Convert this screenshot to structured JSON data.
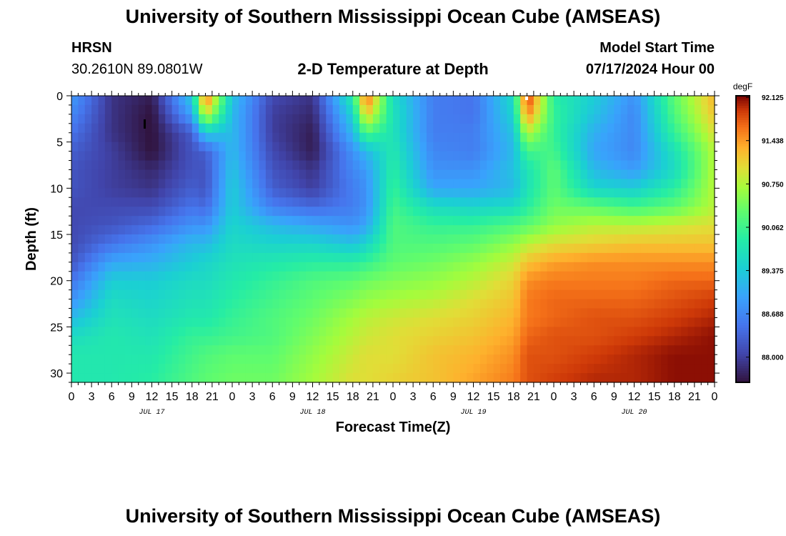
{
  "header": {
    "title": "University of Southern Mississippi Ocean Cube (AMSEAS)",
    "station": "HRSN",
    "coordinates": "30.2610N  89.0801W",
    "subtitle": "2-D Temperature at Depth",
    "model_start_label": "Model Start Time",
    "model_start_value": "07/17/2024 Hour 00"
  },
  "footer": {
    "title": "University of Southern Mississippi Ocean Cube (AMSEAS)"
  },
  "chart_data": {
    "type": "heatmap",
    "xlabel": "Forecast Time(Z)",
    "ylabel": "Depth (ft)",
    "x_unit": "hours from model start (07/17/2024 00Z)",
    "xlim": [
      0,
      96
    ],
    "ylim": [
      31,
      0
    ],
    "x_tick_labels": [
      "0",
      "3",
      "6",
      "9",
      "12",
      "15",
      "18",
      "21",
      "0",
      "3",
      "6",
      "9",
      "12",
      "15",
      "18",
      "21",
      "0",
      "3",
      "6",
      "9",
      "12",
      "15",
      "18",
      "21",
      "0",
      "3",
      "6",
      "9",
      "12",
      "15",
      "18",
      "21",
      "0"
    ],
    "y_ticks": [
      0,
      5,
      10,
      15,
      20,
      25,
      30
    ],
    "date_labels": [
      {
        "label": "JUL 17",
        "hour": 12
      },
      {
        "label": "JUL 18",
        "hour": 36
      },
      {
        "label": "JUL 19",
        "hour": 60
      },
      {
        "label": "JUL 20",
        "hour": 84
      }
    ],
    "colorbar": {
      "unit": "degF",
      "min": 87.6,
      "max": 92.15,
      "tick_labels": [
        "92.125",
        "91.438",
        "90.750",
        "90.062",
        "89.375",
        "88.688",
        "88.000"
      ],
      "tick_values": [
        92.125,
        91.438,
        90.75,
        90.062,
        89.375,
        88.688,
        88.0
      ]
    },
    "depths": [
      0,
      2,
      4,
      6,
      8,
      10,
      12,
      14,
      16,
      18,
      20,
      22,
      24,
      26,
      28,
      31
    ],
    "hours": [
      0,
      6,
      12,
      18,
      20,
      24,
      30,
      36,
      42,
      44,
      48,
      54,
      60,
      66,
      68,
      72,
      78,
      84,
      90,
      96
    ],
    "values": [
      [
        88.9,
        87.9,
        87.7,
        89.4,
        91.8,
        89.3,
        88.1,
        87.9,
        89.9,
        91.8,
        89.6,
        88.6,
        88.5,
        89.6,
        92.0,
        89.9,
        89.4,
        88.8,
        90.3,
        91.3
      ],
      [
        88.7,
        87.9,
        87.6,
        89.0,
        91.0,
        89.2,
        88.0,
        87.8,
        89.5,
        91.2,
        89.7,
        88.6,
        88.5,
        89.5,
        91.6,
        90.0,
        89.3,
        88.7,
        90.2,
        91.2
      ],
      [
        88.5,
        87.9,
        87.6,
        88.3,
        89.4,
        89.2,
        88.0,
        87.7,
        89.2,
        90.2,
        89.7,
        88.6,
        88.6,
        89.3,
        90.8,
        90.0,
        89.1,
        88.7,
        90.0,
        91.0
      ],
      [
        88.3,
        88.0,
        87.6,
        88.2,
        88.3,
        89.2,
        88.1,
        87.7,
        88.8,
        89.2,
        89.8,
        88.7,
        88.6,
        89.2,
        90.1,
        90.1,
        89.0,
        88.7,
        89.7,
        90.8
      ],
      [
        88.2,
        88.0,
        87.8,
        88.2,
        88.2,
        89.3,
        88.2,
        87.9,
        88.7,
        88.9,
        89.9,
        88.8,
        88.8,
        89.3,
        89.7,
        90.3,
        89.2,
        88.9,
        89.6,
        90.8
      ],
      [
        88.2,
        88.0,
        87.9,
        88.3,
        88.2,
        89.4,
        88.3,
        88.0,
        88.6,
        88.8,
        90.0,
        89.0,
        89.0,
        89.2,
        89.7,
        90.3,
        89.5,
        89.4,
        89.9,
        90.8
      ],
      [
        88.1,
        88.1,
        88.1,
        88.5,
        88.4,
        89.4,
        88.6,
        88.4,
        88.6,
        88.8,
        90.1,
        89.6,
        89.5,
        89.6,
        89.9,
        90.4,
        90.3,
        90.1,
        90.3,
        90.8
      ],
      [
        88.1,
        88.2,
        88.4,
        88.8,
        88.8,
        89.5,
        89.2,
        89.0,
        88.8,
        89.0,
        90.2,
        90.0,
        90.0,
        90.2,
        90.3,
        90.6,
        90.8,
        90.8,
        90.9,
        91.0
      ],
      [
        88.1,
        88.5,
        88.8,
        89.2,
        89.2,
        89.6,
        89.5,
        89.5,
        89.3,
        89.5,
        90.2,
        90.2,
        90.3,
        90.6,
        90.8,
        91.0,
        91.1,
        91.2,
        91.2,
        91.2
      ],
      [
        88.2,
        89.0,
        89.1,
        89.4,
        89.5,
        89.7,
        89.8,
        89.9,
        89.9,
        90.0,
        90.3,
        90.4,
        90.6,
        90.9,
        91.2,
        91.4,
        91.5,
        91.5,
        91.5,
        91.5
      ],
      [
        88.5,
        89.4,
        89.4,
        89.6,
        89.6,
        89.8,
        90.0,
        90.2,
        90.3,
        90.4,
        90.5,
        90.6,
        90.8,
        91.1,
        91.5,
        91.6,
        91.6,
        91.6,
        91.7,
        91.7
      ],
      [
        88.8,
        89.6,
        89.5,
        89.7,
        89.7,
        89.9,
        90.1,
        90.3,
        90.5,
        90.6,
        90.7,
        90.8,
        91.0,
        91.2,
        91.6,
        91.7,
        91.7,
        91.7,
        91.8,
        91.9
      ],
      [
        89.2,
        89.7,
        89.6,
        89.8,
        89.8,
        90.0,
        90.2,
        90.4,
        90.7,
        90.8,
        90.9,
        91.0,
        91.1,
        91.3,
        91.6,
        91.7,
        91.8,
        91.8,
        91.9,
        92.0
      ],
      [
        89.6,
        89.8,
        89.7,
        90.0,
        90.0,
        90.1,
        90.2,
        90.5,
        90.8,
        90.9,
        91.0,
        91.1,
        91.2,
        91.4,
        91.7,
        91.8,
        91.8,
        91.9,
        92.0,
        92.1
      ],
      [
        89.8,
        89.8,
        89.8,
        90.1,
        90.2,
        90.3,
        90.3,
        90.6,
        90.9,
        91.0,
        91.0,
        91.2,
        91.3,
        91.5,
        91.8,
        91.8,
        91.9,
        92.0,
        92.1,
        92.1
      ],
      [
        89.8,
        89.8,
        89.9,
        90.2,
        90.3,
        90.4,
        90.4,
        90.7,
        91.0,
        91.0,
        91.1,
        91.2,
        91.4,
        91.6,
        91.8,
        91.9,
        92.0,
        92.0,
        92.1,
        92.1
      ]
    ]
  }
}
